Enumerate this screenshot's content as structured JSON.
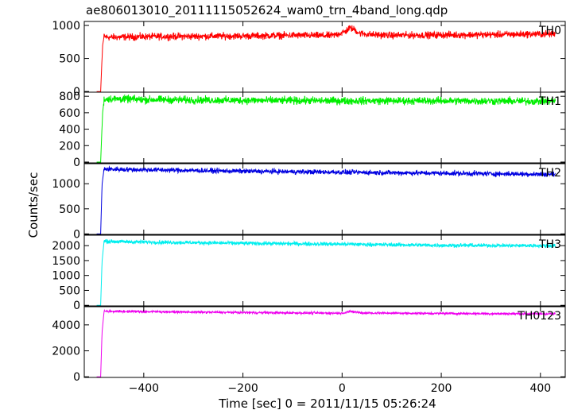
{
  "chart_data": {
    "type": "line",
    "title": "ae806013010_20111115052624_wam0_trn_4band_long.qdp",
    "xlabel": "Time [sec] 0 = 2011/11/15 05:26:24",
    "ylabel": "Counts/sec",
    "xlim": [
      -520,
      450
    ],
    "x_ticks": [
      -400,
      -200,
      0,
      200,
      400
    ],
    "x_tick_labels": [
      "−400",
      "−200",
      "0",
      "200",
      "400"
    ],
    "grid": false,
    "panels": [
      {
        "name": "TH0",
        "color": "#ff0000",
        "ylim": [
          -10,
          1060
        ],
        "y_ticks": [
          0,
          500,
          1000
        ],
        "y_tick_labels": [
          "0",
          "500",
          "1000"
        ],
        "onset_x": -487,
        "pre_level": 0,
        "profile_x": [
          -487,
          -483,
          -480,
          -470,
          -400,
          -200,
          -100,
          -20,
          5,
          15,
          25,
          35,
          60,
          100,
          200,
          300,
          400,
          430
        ],
        "profile_y": [
          0,
          700,
          830,
          820,
          830,
          840,
          850,
          845,
          900,
          960,
          940,
          880,
          860,
          850,
          855,
          860,
          870,
          870
        ],
        "noise": 45
      },
      {
        "name": "TH1",
        "color": "#00ee00",
        "ylim": [
          -10,
          850
        ],
        "y_ticks": [
          0,
          200,
          400,
          600,
          800
        ],
        "y_tick_labels": [
          "0",
          "200",
          "400",
          "600",
          "800"
        ],
        "onset_x": -487,
        "pre_level": 0,
        "profile_x": [
          -487,
          -483,
          -480,
          -470,
          -400,
          -200,
          0,
          200,
          400,
          430
        ],
        "profile_y": [
          0,
          600,
          760,
          770,
          760,
          750,
          745,
          745,
          740,
          740
        ],
        "noise": 40
      },
      {
        "name": "TH2",
        "color": "#0000e0",
        "ylim": [
          -10,
          1400
        ],
        "y_ticks": [
          0,
          500,
          1000
        ],
        "y_tick_labels": [
          "0",
          "500",
          "1000"
        ],
        "onset_x": -487,
        "pre_level": 0,
        "profile_x": [
          -487,
          -484,
          -480,
          -470,
          -400,
          -200,
          0,
          200,
          400,
          430
        ],
        "profile_y": [
          0,
          1000,
          1300,
          1290,
          1280,
          1250,
          1230,
          1210,
          1190,
          1190
        ],
        "noise": 42
      },
      {
        "name": "TH3",
        "color": "#00eeee",
        "ylim": [
          -20,
          2350
        ],
        "y_ticks": [
          0,
          500,
          1000,
          1500,
          2000
        ],
        "y_tick_labels": [
          "0",
          "500",
          "1000",
          "1500",
          "2000"
        ],
        "onset_x": -487,
        "pre_level": 0,
        "profile_x": [
          -487,
          -484,
          -480,
          -470,
          -400,
          -200,
          0,
          200,
          400,
          430
        ],
        "profile_y": [
          0,
          1500,
          2150,
          2140,
          2120,
          2080,
          2050,
          2010,
          2000,
          2000
        ],
        "noise": 55
      },
      {
        "name": "TH0123",
        "color": "#ee00ee",
        "ylim": [
          -50,
          5400
        ],
        "y_ticks": [
          0,
          2000,
          4000
        ],
        "y_tick_labels": [
          "0",
          "2000",
          "4000"
        ],
        "onset_x": -487,
        "pre_level": 0,
        "profile_x": [
          -487,
          -484,
          -480,
          -470,
          -400,
          -200,
          0,
          10,
          20,
          40,
          200,
          400,
          430
        ],
        "profile_y": [
          0,
          3500,
          5050,
          5050,
          5020,
          4950,
          4900,
          5000,
          5020,
          4920,
          4880,
          4850,
          4850
        ],
        "noise": 75
      }
    ]
  }
}
